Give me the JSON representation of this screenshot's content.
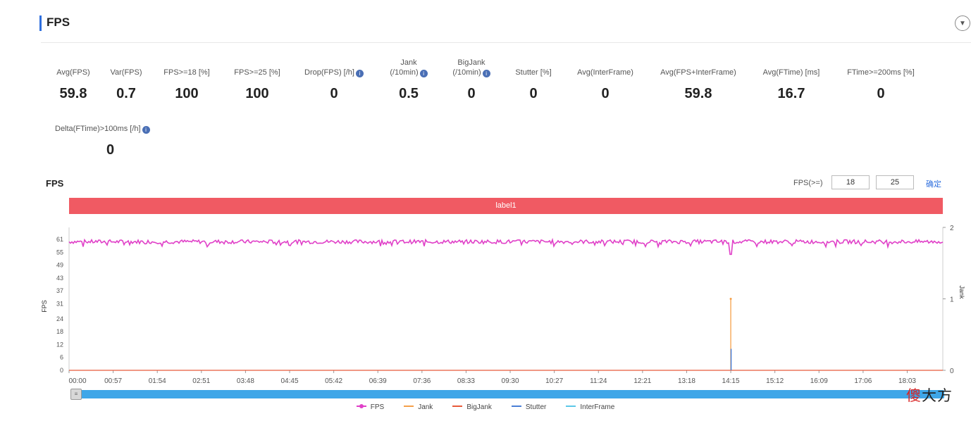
{
  "header": {
    "title": "FPS",
    "collapse_icon": "chevron-down-icon"
  },
  "metrics": [
    {
      "label": "Avg(FPS)",
      "value": "59.8"
    },
    {
      "label": "Var(FPS)",
      "value": "0.7"
    },
    {
      "label": "FPS>=18 [%]",
      "value": "100"
    },
    {
      "label": "FPS>=25 [%]",
      "value": "100"
    },
    {
      "label": "Drop(FPS) [/h]",
      "value": "0",
      "info": true
    },
    {
      "label": "Jank",
      "label2": "(/10min)",
      "value": "0.5",
      "info": true
    },
    {
      "label": "BigJank",
      "label2": "(/10min)",
      "value": "0",
      "info": true
    },
    {
      "label": "Stutter [%]",
      "value": "0"
    },
    {
      "label": "Avg(InterFrame)",
      "value": "0"
    },
    {
      "label": "Avg(FPS+InterFrame)",
      "value": "59.8"
    },
    {
      "label": "Avg(FTime) [ms]",
      "value": "16.7"
    },
    {
      "label": "FTime>=200ms [%]",
      "value": "0"
    },
    {
      "label": "Delta(FTime)>100ms [/h]",
      "value": "0",
      "info": true
    }
  ],
  "chart_controls": {
    "title": "FPS",
    "threshold_label": "FPS(>=)",
    "threshold_1": "18",
    "threshold_2": "25",
    "confirm_label": "确定"
  },
  "label_band": {
    "text": "label1",
    "color": "#f05a63"
  },
  "watermark": {
    "text_red": "傻",
    "text": "大方"
  },
  "chart_data": {
    "type": "line",
    "title": "",
    "xlabel": "",
    "ylabel": "FPS",
    "y2label": "Jank",
    "ylim": [
      0,
      61
    ],
    "y2lim": [
      0,
      2
    ],
    "y_ticks": [
      0,
      6,
      12,
      18,
      24,
      31,
      37,
      43,
      49,
      55,
      61
    ],
    "y2_ticks": [
      0,
      1,
      2
    ],
    "x_ticks": [
      "00:00",
      "00:57",
      "01:54",
      "02:51",
      "03:48",
      "04:45",
      "05:42",
      "06:39",
      "07:36",
      "08:33",
      "09:30",
      "10:27",
      "11:24",
      "12:21",
      "13:18",
      "14:15",
      "15:12",
      "16:09",
      "17:06",
      "18:03"
    ],
    "x_range_seconds": [
      0,
      1129
    ],
    "grid": false,
    "legend_position": "bottom",
    "series": [
      {
        "name": "FPS",
        "color": "#e040c8",
        "axis": "left",
        "typical_value": 60,
        "min_value": 54,
        "min_at": "14:15"
      },
      {
        "name": "Jank",
        "color": "#f5a04a",
        "axis": "right",
        "spike_at": "14:15",
        "spike_value": 1,
        "baseline": 0
      },
      {
        "name": "BigJank",
        "color": "#e85a3a",
        "axis": "right",
        "baseline": 0
      },
      {
        "name": "Stutter",
        "color": "#4a7fd6",
        "axis": "left",
        "spike_at": "14:15",
        "spike_value": 10,
        "baseline": 0
      },
      {
        "name": "InterFrame",
        "color": "#5cc8e8",
        "axis": "left",
        "baseline": 0
      }
    ]
  }
}
